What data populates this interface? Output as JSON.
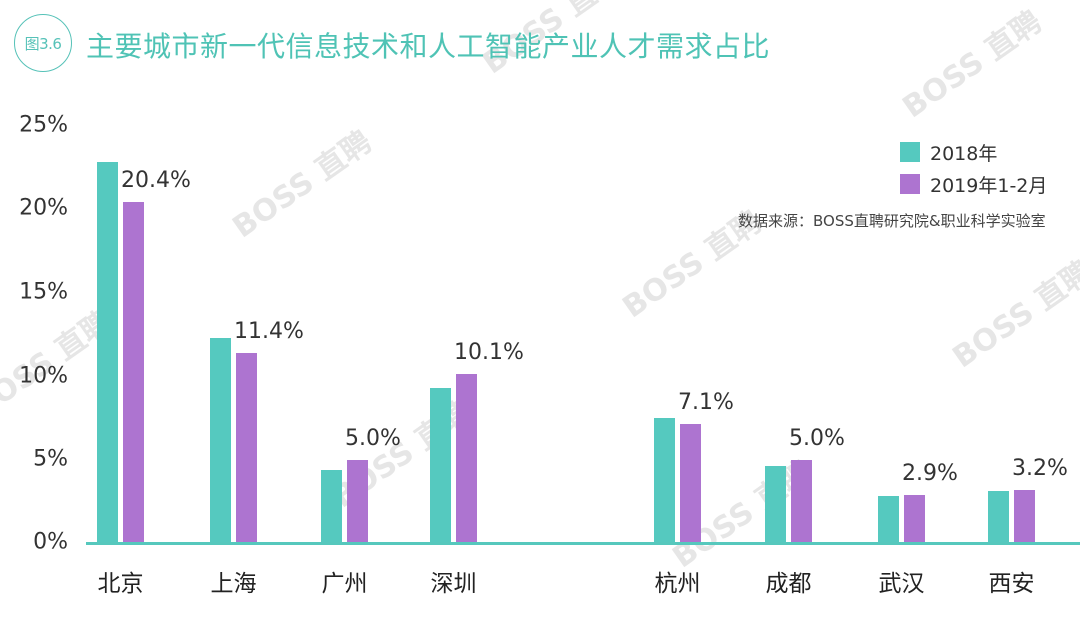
{
  "header": {
    "figure_badge": "图3.6",
    "title": "主要城市新一代信息技术和人工智能产业人才需求占比"
  },
  "legend": {
    "items": [
      {
        "label": "2018年",
        "color": "#55c9bf"
      },
      {
        "label": "2019年1-2月",
        "color": "#ad74d0"
      }
    ]
  },
  "source": "数据来源：BOSS直聘研究院&职业科学实验室",
  "watermark": "BOSS 直聘",
  "y_axis": {
    "ticks": [
      "25%",
      "20%",
      "15%",
      "10%",
      "5%",
      "0%"
    ]
  },
  "categories": [
    {
      "name": "北京",
      "label": "20.4%"
    },
    {
      "name": "上海",
      "label": "11.4%"
    },
    {
      "name": "广州",
      "label": "5.0%"
    },
    {
      "name": "深圳",
      "label": "10.1%"
    },
    {
      "name": "杭州",
      "label": "7.1%"
    },
    {
      "name": "成都",
      "label": "5.0%"
    },
    {
      "name": "武汉",
      "label": "2.9%"
    },
    {
      "name": "西安",
      "label": "3.2%"
    }
  ],
  "chart_data": {
    "type": "bar",
    "title": "主要城市新一代信息技术和人工智能产业人才需求占比",
    "xlabel": "",
    "ylabel": "",
    "ylim": [
      0,
      25
    ],
    "y_ticks": [
      "0%",
      "5%",
      "10%",
      "15%",
      "20%",
      "25%"
    ],
    "grid": false,
    "legend_position": "upper right",
    "categories": [
      "北京",
      "上海",
      "广州",
      "深圳",
      "杭州",
      "成都",
      "武汉",
      "西安"
    ],
    "series": [
      {
        "name": "2018年",
        "color": "#55c9bf",
        "values": [
          22.8,
          12.3,
          4.4,
          9.3,
          7.5,
          4.6,
          2.8,
          3.1
        ]
      },
      {
        "name": "2019年1-2月",
        "color": "#ad74d0",
        "values": [
          20.4,
          11.4,
          5.0,
          10.1,
          7.1,
          5.0,
          2.9,
          3.2
        ]
      }
    ],
    "data_labels": {
      "series": "2019年1-2月",
      "labels": [
        "20.4%",
        "11.4%",
        "5.0%",
        "10.1%",
        "7.1%",
        "5.0%",
        "2.9%",
        "3.2%"
      ]
    },
    "annotation": "数据来源：BOSS直聘研究院&职业科学实验室"
  }
}
